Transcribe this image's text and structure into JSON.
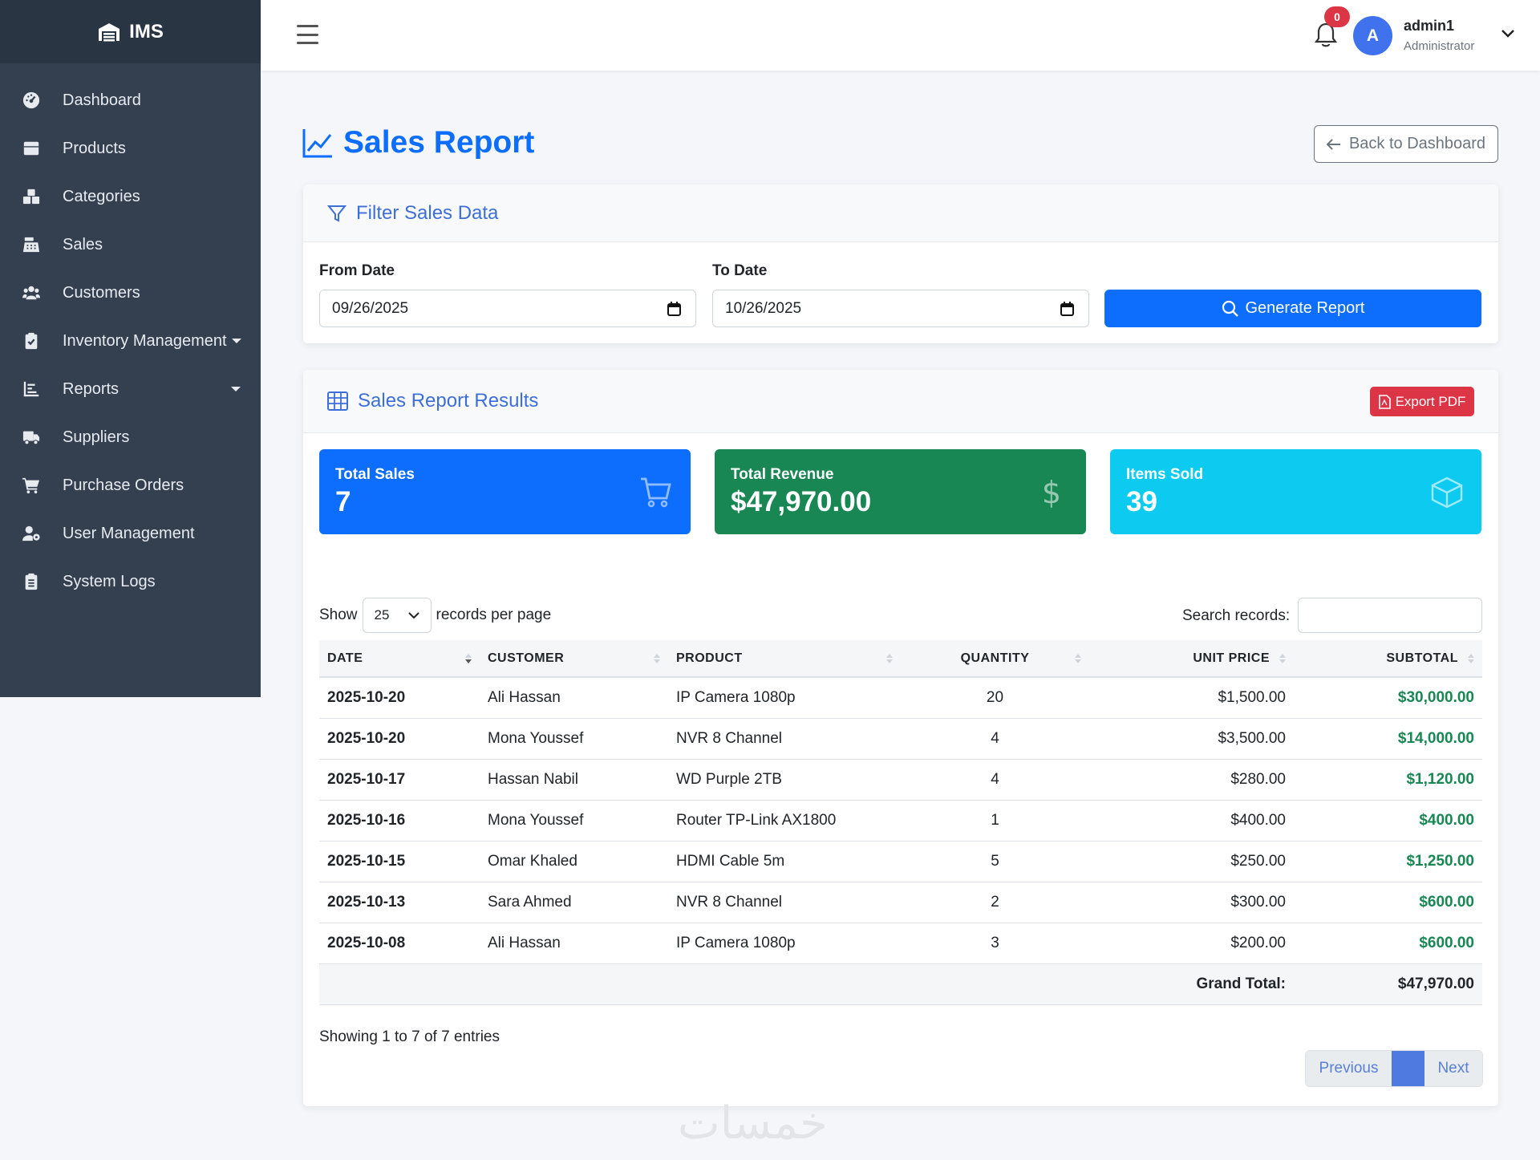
{
  "brand": {
    "name": "IMS",
    "icon": "warehouse-icon"
  },
  "sidebar": {
    "items": [
      {
        "label": "Dashboard",
        "icon": "gauge-icon"
      },
      {
        "label": "Products",
        "icon": "box-icon"
      },
      {
        "label": "Categories",
        "icon": "cubes-icon"
      },
      {
        "label": "Sales",
        "icon": "cash-register-icon"
      },
      {
        "label": "Customers",
        "icon": "users-icon"
      },
      {
        "label": "Inventory Management",
        "icon": "clipboard-check-icon"
      },
      {
        "label": "Reports",
        "icon": "chart-bar-icon"
      },
      {
        "label": "Suppliers",
        "icon": "truck-icon"
      },
      {
        "label": "Purchase Orders",
        "icon": "cart-icon"
      },
      {
        "label": "User Management",
        "icon": "user-gear-icon"
      },
      {
        "label": "System Logs",
        "icon": "clipboard-list-icon"
      }
    ]
  },
  "topbar": {
    "notifications": "0",
    "avatar_letter": "A",
    "username": "admin1",
    "role": "Administrator"
  },
  "page": {
    "title": "Sales Report",
    "back_label": "Back to Dashboard"
  },
  "filter": {
    "header": "Filter Sales Data",
    "from_label": "From Date",
    "from_value": "09/26/2025",
    "to_label": "To Date",
    "to_value": "10/26/2025",
    "generate_label": "Generate Report"
  },
  "results": {
    "header": "Sales Report Results",
    "export_label": "Export PDF",
    "stats": [
      {
        "label": "Total Sales",
        "value": "7",
        "color": "#0d6efd",
        "icon": "cart-icon"
      },
      {
        "label": "Total Revenue",
        "value": "$47,970.00",
        "color": "#198754",
        "icon": "dollar-icon"
      },
      {
        "label": "Items Sold",
        "value": "39",
        "color": "#0dcaf0",
        "icon": "cube-icon"
      }
    ],
    "show_label": "Show",
    "page_size": "25",
    "per_page_label": "records per page",
    "search_label": "Search records:",
    "search_value": "",
    "columns": [
      "DATE",
      "CUSTOMER",
      "PRODUCT",
      "QUANTITY",
      "UNIT PRICE",
      "SUBTOTAL"
    ],
    "rows": [
      {
        "date": "2025-10-20",
        "customer": "Ali Hassan",
        "product": "IP Camera 1080p",
        "quantity": "20",
        "unit_price": "$1,500.00",
        "subtotal": "$30,000.00"
      },
      {
        "date": "2025-10-20",
        "customer": "Mona Youssef",
        "product": "NVR 8 Channel",
        "quantity": "4",
        "unit_price": "$3,500.00",
        "subtotal": "$14,000.00"
      },
      {
        "date": "2025-10-17",
        "customer": "Hassan Nabil",
        "product": "WD Purple 2TB",
        "quantity": "4",
        "unit_price": "$280.00",
        "subtotal": "$1,120.00"
      },
      {
        "date": "2025-10-16",
        "customer": "Mona Youssef",
        "product": "Router TP-Link AX1800",
        "quantity": "1",
        "unit_price": "$400.00",
        "subtotal": "$400.00"
      },
      {
        "date": "2025-10-15",
        "customer": "Omar Khaled",
        "product": "HDMI Cable 5m",
        "quantity": "5",
        "unit_price": "$250.00",
        "subtotal": "$1,250.00"
      },
      {
        "date": "2025-10-13",
        "customer": "Sara Ahmed",
        "product": "NVR 8 Channel",
        "quantity": "2",
        "unit_price": "$300.00",
        "subtotal": "$600.00"
      },
      {
        "date": "2025-10-08",
        "customer": "Ali Hassan",
        "product": "IP Camera 1080p",
        "quantity": "3",
        "unit_price": "$200.00",
        "subtotal": "$600.00"
      }
    ],
    "grand_total_label": "Grand Total:",
    "grand_total_value": "$47,970.00",
    "showing": "Showing 1 to 7 of 7 entries",
    "prev_label": "Previous",
    "next_label": "Next"
  },
  "watermark": "خمسات"
}
